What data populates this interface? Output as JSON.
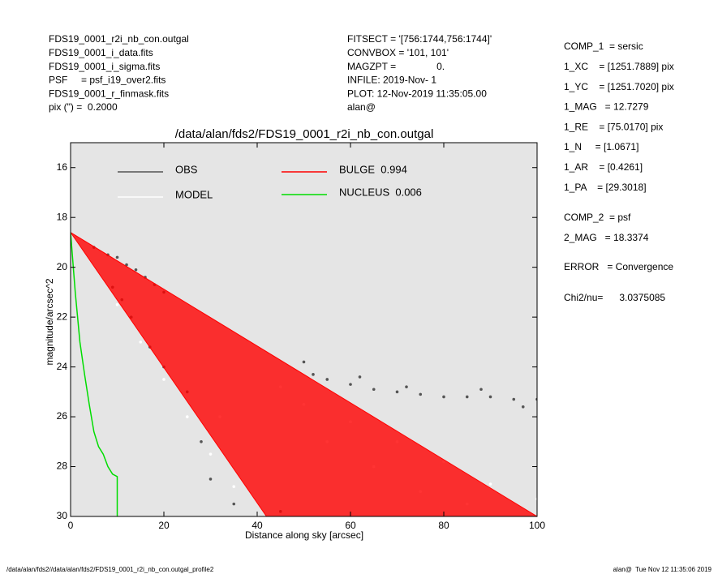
{
  "header": {
    "left": [
      "FDS19_0001_r2i_nb_con.outgal",
      "FDS19_0001_i_data.fits",
      "FDS19_0001_i_sigma.fits",
      "PSF     = psf_i19_over2.fits",
      "FDS19_0001_r_finmask.fits",
      "pix (\") =  0.2000"
    ],
    "middle": [
      "FITSECT = '[756:1744,756:1744]'",
      "CONVBOX = '101, 101'",
      "MAGZPT =               0.",
      "INFILE: 2019-Nov- 1",
      "PLOT: 12-Nov-2019 11:35:05.00",
      "alan@"
    ]
  },
  "side_panel": [
    [
      "COMP_1  = sersic",
      "1_XC    = [1251.7889] pix",
      "1_YC    = [1251.7020] pix",
      "1_MAG   = 12.7279",
      "1_RE    = [75.0170] pix",
      "1_N     = [1.0671]",
      "1_AR    = [0.4261]",
      "1_PA    = [29.3018]"
    ],
    [
      "COMP_2  = psf",
      "2_MAG   = 18.3374"
    ],
    [
      "ERROR   = Convergence"
    ],
    [
      "Chi2/nu=      3.0375085"
    ]
  ],
  "footer": {
    "left": "/data/alan/fds2//data/alan/fds2/FDS19_0001_r2i_nb_con.outgal_profile2",
    "right": "alan@  Tue Nov 12 11:35:06 2019"
  },
  "chart_data": {
    "type": "scatter",
    "title": "/data/alan/fds2/FDS19_0001_r2i_nb_con.outgal",
    "x_label": "Distance along sky [arcsec]",
    "y_label": "magnitude/arcsec^2",
    "xlim": [
      0,
      100
    ],
    "xticks": [
      0,
      20,
      40,
      60,
      80,
      100
    ],
    "ylim": [
      15,
      30
    ],
    "y_inverted": true,
    "yticks": [
      16,
      18,
      20,
      22,
      24,
      26,
      28,
      30
    ],
    "series": [
      {
        "name": "OBS",
        "type": "scatter",
        "color": "#555555",
        "label_color": "#999999",
        "x": [
          5,
          8,
          10,
          12,
          14,
          16,
          18,
          20,
          9,
          11,
          13,
          17,
          20,
          25,
          28,
          30,
          35,
          50,
          52,
          55,
          60,
          65,
          70,
          75,
          80,
          85,
          90,
          95,
          100,
          62,
          72,
          88,
          97,
          45
        ],
        "values": [
          19.2,
          19.5,
          19.6,
          19.9,
          20.1,
          20.4,
          20.7,
          21,
          20.8,
          21.3,
          22,
          23.2,
          24,
          25,
          27,
          28.5,
          29.5,
          23.8,
          24.3,
          24.5,
          24.7,
          24.9,
          25,
          25.1,
          25.2,
          25.2,
          25.2,
          25.3,
          25.3,
          24.4,
          24.8,
          24.9,
          25.6,
          29.8
        ]
      },
      {
        "name": "MODEL",
        "type": "scatter",
        "color": "#ffffff",
        "label_color": "#ffffff",
        "x": [
          10,
          15,
          20,
          25,
          30,
          35,
          40,
          50,
          60,
          70,
          80,
          90,
          100,
          55,
          65,
          75,
          85,
          32,
          45
        ],
        "values": [
          21.5,
          23,
          24.5,
          26,
          27.5,
          28.8,
          30,
          25.5,
          26.2,
          27,
          27.8,
          28.7,
          29.3,
          27,
          28,
          29,
          29.5,
          26,
          24.8
        ]
      },
      {
        "name": "BULGE  0.994",
        "type": "area",
        "color": "#ff0000",
        "label_color": "#ff0000",
        "x": [
          0,
          100
        ],
        "values": [
          18.6,
          30
        ],
        "lower_x": [
          0,
          42
        ],
        "lower_values": [
          18.6,
          30
        ]
      },
      {
        "name": "NUCLEUS  0.006",
        "type": "line",
        "color": "#00dd00",
        "label_color": "#00dd00",
        "x": [
          0,
          1,
          2,
          3,
          4,
          5,
          6,
          7,
          8,
          9,
          10,
          10
        ],
        "values": [
          18.6,
          21,
          23,
          24.3,
          25.5,
          26.6,
          27.2,
          27.5,
          28,
          28.3,
          28.4,
          30
        ]
      }
    ]
  }
}
